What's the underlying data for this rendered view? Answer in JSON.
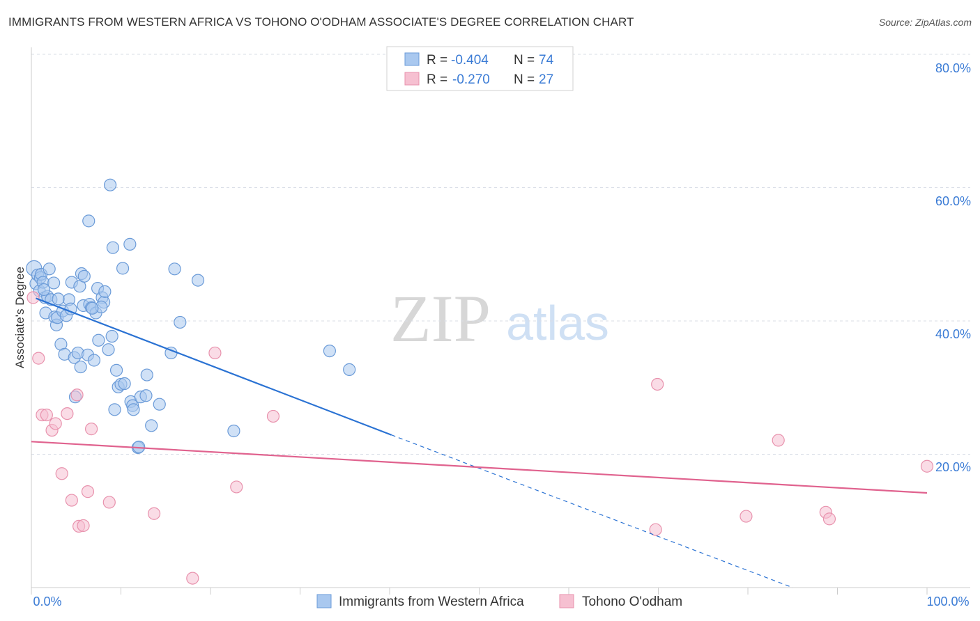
{
  "title": "IMMIGRANTS FROM WESTERN AFRICA VS TOHONO O'ODHAM ASSOCIATE'S DEGREE CORRELATION CHART",
  "source": "Source: ZipAtlas.com",
  "watermark": {
    "zip": "ZIP",
    "atlas": "atlas"
  },
  "colors": {
    "blue_fill": "#a9c8ef",
    "blue_stroke": "#6b9bd8",
    "blue_line": "#2a72d3",
    "pink_fill": "#f6c0d1",
    "pink_stroke": "#e892ad",
    "pink_line": "#e0628e",
    "axis_text": "#3a7bd5",
    "grid": "#d8dde6"
  },
  "legend": {
    "rows": [
      {
        "r_label": "R = ",
        "r_value": "-0.404",
        "n_label": "N = ",
        "n_value": "74"
      },
      {
        "r_label": "R = ",
        "r_value": "-0.270",
        "n_label": "N = ",
        "n_value": "27"
      }
    ]
  },
  "bottom_legend": [
    "Immigrants from Western Africa",
    "Tohono O'odham"
  ],
  "chart_data": {
    "type": "scatter",
    "title": "IMMIGRANTS FROM WESTERN AFRICA VS TOHONO O'ODHAM ASSOCIATE'S DEGREE CORRELATION CHART",
    "xlabel": "",
    "ylabel": "Associate's Degree",
    "xlim": [
      0,
      100
    ],
    "ylim": [
      0,
      80
    ],
    "x_tick_labels": [
      "0.0%",
      "100.0%"
    ],
    "y_ticks": [
      20,
      40,
      60,
      80
    ],
    "y_tick_labels": [
      "20.0%",
      "40.0%",
      "60.0%",
      "80.0%"
    ],
    "grid": true,
    "legend_position": "top-center",
    "series": [
      {
        "name": "Immigrants from Western Africa",
        "color": "blue",
        "r": -0.404,
        "n": 74,
        "trend": {
          "x0": 0.5,
          "y0": 43.4,
          "x1": 40.2,
          "y1": 22.9,
          "dash_to_x": 85.0,
          "dash_to_y": 0
        },
        "points": [
          [
            0.3,
            47.9
          ],
          [
            0.5,
            45.6
          ],
          [
            0.7,
            46.9
          ],
          [
            0.9,
            44.5
          ],
          [
            1.0,
            46.5
          ],
          [
            1.1,
            47.0
          ],
          [
            1.3,
            45.8
          ],
          [
            1.5,
            43.5
          ],
          [
            1.6,
            41.2
          ],
          [
            1.8,
            43.7
          ],
          [
            2.0,
            47.8
          ],
          [
            2.2,
            43.2
          ],
          [
            2.6,
            40.6
          ],
          [
            2.8,
            39.4
          ],
          [
            2.9,
            40.5
          ],
          [
            3.3,
            36.5
          ],
          [
            3.5,
            41.5
          ],
          [
            3.7,
            35.0
          ],
          [
            3.9,
            40.8
          ],
          [
            4.2,
            43.2
          ],
          [
            4.5,
            45.8
          ],
          [
            4.8,
            34.5
          ],
          [
            4.9,
            28.6
          ],
          [
            5.2,
            35.2
          ],
          [
            5.4,
            45.2
          ],
          [
            5.5,
            33.1
          ],
          [
            5.6,
            47.1
          ],
          [
            5.8,
            42.3
          ],
          [
            5.9,
            46.7
          ],
          [
            6.3,
            34.9
          ],
          [
            6.4,
            55.0
          ],
          [
            6.5,
            42.5
          ],
          [
            6.7,
            42.0
          ],
          [
            7.2,
            41.2
          ],
          [
            7.0,
            34.1
          ],
          [
            7.4,
            44.9
          ],
          [
            7.5,
            37.1
          ],
          [
            7.9,
            43.5
          ],
          [
            8.1,
            42.8
          ],
          [
            8.2,
            44.4
          ],
          [
            8.6,
            35.7
          ],
          [
            8.8,
            60.4
          ],
          [
            9.0,
            37.7
          ],
          [
            9.1,
            51.0
          ],
          [
            9.3,
            26.7
          ],
          [
            9.5,
            32.6
          ],
          [
            9.7,
            30.1
          ],
          [
            10.0,
            30.5
          ],
          [
            10.2,
            47.9
          ],
          [
            10.4,
            30.6
          ],
          [
            11.0,
            51.5
          ],
          [
            11.1,
            27.9
          ],
          [
            11.3,
            27.3
          ],
          [
            11.4,
            26.7
          ],
          [
            11.9,
            21.0
          ],
          [
            12.0,
            21.1
          ],
          [
            12.2,
            28.6
          ],
          [
            12.8,
            28.8
          ],
          [
            12.9,
            31.9
          ],
          [
            13.4,
            24.3
          ],
          [
            14.3,
            27.5
          ],
          [
            15.6,
            35.2
          ],
          [
            16.0,
            47.8
          ],
          [
            16.6,
            39.8
          ],
          [
            18.6,
            46.1
          ],
          [
            22.6,
            23.5
          ],
          [
            33.3,
            35.5
          ],
          [
            35.5,
            32.7
          ],
          [
            3.0,
            43.3
          ],
          [
            4.4,
            41.8
          ],
          [
            7.8,
            42.1
          ],
          [
            1.4,
            44.7
          ],
          [
            2.5,
            45.7
          ],
          [
            6.8,
            41.9
          ]
        ]
      },
      {
        "name": "Tohono O'odham",
        "color": "pink",
        "r": -0.27,
        "n": 27,
        "trend": {
          "x0": 0,
          "y0": 21.9,
          "x1": 100,
          "y1": 14.2
        },
        "points": [
          [
            0.2,
            43.5
          ],
          [
            0.8,
            34.4
          ],
          [
            1.2,
            25.9
          ],
          [
            1.7,
            25.9
          ],
          [
            2.3,
            23.6
          ],
          [
            2.7,
            24.6
          ],
          [
            3.4,
            17.1
          ],
          [
            4.0,
            26.1
          ],
          [
            4.5,
            13.1
          ],
          [
            5.1,
            28.9
          ],
          [
            5.3,
            9.2
          ],
          [
            5.8,
            9.3
          ],
          [
            6.3,
            14.4
          ],
          [
            6.7,
            23.8
          ],
          [
            8.7,
            12.8
          ],
          [
            13.7,
            11.1
          ],
          [
            18.0,
            1.4
          ],
          [
            20.5,
            35.2
          ],
          [
            22.9,
            15.1
          ],
          [
            27.0,
            25.7
          ],
          [
            69.7,
            8.7
          ],
          [
            69.9,
            30.5
          ],
          [
            79.8,
            10.7
          ],
          [
            83.4,
            22.1
          ],
          [
            88.7,
            11.3
          ],
          [
            89.1,
            10.3
          ],
          [
            100.0,
            18.2
          ]
        ]
      }
    ]
  }
}
